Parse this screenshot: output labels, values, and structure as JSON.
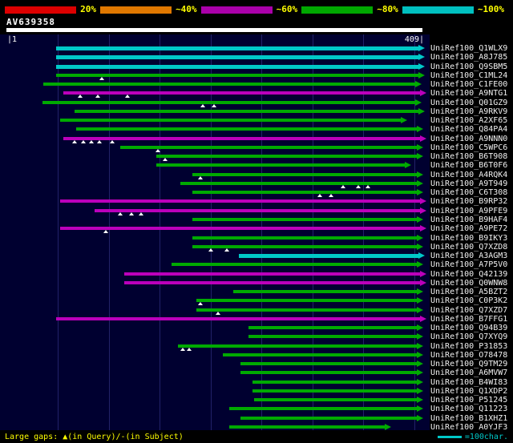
{
  "chart_data": {
    "type": "bar",
    "orientation": "horizontal",
    "description": "Sequence similarity search graphical overview of hits against query",
    "query": {
      "name": "AV639358",
      "length": 409,
      "start_label": "|1",
      "end_label": "409|"
    },
    "axis": {
      "min": 1,
      "max": 409,
      "grid_interval": 50,
      "grid_on": true
    },
    "color_scale": [
      {
        "label": "20%",
        "color": "#dd0000"
      },
      {
        "label": "~40%",
        "color": "#e07800"
      },
      {
        "label": "~60%",
        "color": "#aa00aa"
      },
      {
        "label": "~80%",
        "color": "#00a800"
      },
      {
        "label": "~100%",
        "color": "#00c0c0"
      }
    ],
    "bar_colors": {
      "cyan": "#00c8c8",
      "green": "#00aa00",
      "magenta": "#bb00bb"
    },
    "gap_legend": "Large gaps: ▲(in Query)/-(in Subject)",
    "scale_legend": "=100char.",
    "scale_legend_color": "#00c8c8",
    "hits": [
      {
        "label": "UniRef100_Q1WLX9",
        "color": "cyan",
        "start": 48,
        "end": 404,
        "gaps": []
      },
      {
        "label": "UniRef100_A8J785",
        "color": "cyan",
        "start": 48,
        "end": 404,
        "gaps": []
      },
      {
        "label": "UniRef100_Q9SBM5",
        "color": "cyan",
        "start": 48,
        "end": 404,
        "gaps": []
      },
      {
        "label": "UniRef100_C1ML24",
        "color": "green",
        "start": 48,
        "end": 404,
        "gaps": [
          93
        ]
      },
      {
        "label": "UniRef100_C1FE00",
        "color": "green",
        "start": 36,
        "end": 401,
        "gaps": []
      },
      {
        "label": "UniRef100_A9NTG1",
        "color": "magenta",
        "start": 55,
        "end": 406,
        "gaps": [
          72,
          89,
          118
        ]
      },
      {
        "label": "UniRef100_Q01GZ9",
        "color": "green",
        "start": 35,
        "end": 401,
        "gaps": [
          192,
          203
        ]
      },
      {
        "label": "UniRef100_A9RKV9",
        "color": "green",
        "start": 66,
        "end": 404,
        "gaps": []
      },
      {
        "label": "UniRef100_A2XF65",
        "color": "green",
        "start": 52,
        "end": 387,
        "gaps": []
      },
      {
        "label": "UniRef100_Q84PA4",
        "color": "green",
        "start": 68,
        "end": 403,
        "gaps": []
      },
      {
        "label": "UniRef100_A9NNN0",
        "color": "magenta",
        "start": 55,
        "end": 406,
        "gaps": [
          66,
          75,
          83,
          91,
          103
        ]
      },
      {
        "label": "UniRef100_C5WPC6",
        "color": "green",
        "start": 111,
        "end": 403,
        "gaps": [
          148
        ]
      },
      {
        "label": "UniRef100_B6T908",
        "color": "green",
        "start": 147,
        "end": 403,
        "gaps": [
          155
        ]
      },
      {
        "label": "UniRef100_B6T0F6",
        "color": "green",
        "start": 147,
        "end": 391,
        "gaps": []
      },
      {
        "label": "UniRef100_A4RQK4",
        "color": "green",
        "start": 182,
        "end": 403,
        "gaps": [
          190
        ]
      },
      {
        "label": "UniRef100_A9T949",
        "color": "green",
        "start": 170,
        "end": 403,
        "gaps": [
          330,
          345,
          355
        ]
      },
      {
        "label": "UniRef100_C6T308",
        "color": "green",
        "start": 182,
        "end": 403,
        "gaps": [
          307,
          318
        ]
      },
      {
        "label": "UniRef100_B9RP32",
        "color": "magenta",
        "start": 52,
        "end": 406,
        "gaps": []
      },
      {
        "label": "UniRef100_A9PFE9",
        "color": "magenta",
        "start": 86,
        "end": 406,
        "gaps": [
          111,
          122,
          132
        ]
      },
      {
        "label": "UniRef100_B9HAF4",
        "color": "green",
        "start": 182,
        "end": 403,
        "gaps": []
      },
      {
        "label": "UniRef100_A9PE72",
        "color": "magenta",
        "start": 52,
        "end": 406,
        "gaps": [
          97
        ]
      },
      {
        "label": "UniRef100_B9IKY3",
        "color": "green",
        "start": 182,
        "end": 403,
        "gaps": []
      },
      {
        "label": "UniRef100_Q7XZD8",
        "color": "green",
        "start": 182,
        "end": 403,
        "gaps": [
          200,
          216
        ]
      },
      {
        "label": "UniRef100_A3AGM3",
        "color": "cyan",
        "start": 228,
        "end": 404,
        "gaps": []
      },
      {
        "label": "UniRef100_A7P5V0",
        "color": "green",
        "start": 162,
        "end": 403,
        "gaps": []
      },
      {
        "label": "UniRef100_Q42139",
        "color": "magenta",
        "start": 115,
        "end": 406,
        "gaps": []
      },
      {
        "label": "UniRef100_Q0WNW8",
        "color": "magenta",
        "start": 115,
        "end": 406,
        "gaps": []
      },
      {
        "label": "UniRef100_A5BZT2",
        "color": "green",
        "start": 222,
        "end": 403,
        "gaps": []
      },
      {
        "label": "UniRef100_C0P3K2",
        "color": "green",
        "start": 186,
        "end": 403,
        "gaps": [
          190
        ]
      },
      {
        "label": "UniRef100_Q7XZD7",
        "color": "green",
        "start": 186,
        "end": 403,
        "gaps": [
          207
        ]
      },
      {
        "label": "UniRef100_B7FFG1",
        "color": "magenta",
        "start": 48,
        "end": 406,
        "gaps": []
      },
      {
        "label": "UniRef100_Q94B39",
        "color": "green",
        "start": 237,
        "end": 403,
        "gaps": []
      },
      {
        "label": "UniRef100_Q7XYQ9",
        "color": "green",
        "start": 237,
        "end": 403,
        "gaps": []
      },
      {
        "label": "UniRef100_P31853",
        "color": "green",
        "start": 168,
        "end": 403,
        "gaps": [
          173,
          179
        ]
      },
      {
        "label": "UniRef100_O78478",
        "color": "green",
        "start": 212,
        "end": 403,
        "gaps": []
      },
      {
        "label": "UniRef100_Q9TM29",
        "color": "green",
        "start": 229,
        "end": 403,
        "gaps": []
      },
      {
        "label": "UniRef100_A6MVW7",
        "color": "green",
        "start": 229,
        "end": 403,
        "gaps": []
      },
      {
        "label": "UniRef100_B4WI83",
        "color": "green",
        "start": 241,
        "end": 403,
        "gaps": []
      },
      {
        "label": "UniRef100_Q1XDP2",
        "color": "green",
        "start": 241,
        "end": 403,
        "gaps": []
      },
      {
        "label": "UniRef100_P51245",
        "color": "green",
        "start": 243,
        "end": 403,
        "gaps": []
      },
      {
        "label": "UniRef100_Q11223",
        "color": "green",
        "start": 218,
        "end": 403,
        "gaps": []
      },
      {
        "label": "UniRef100_B1XHZ1",
        "color": "green",
        "start": 229,
        "end": 403,
        "gaps": []
      },
      {
        "label": "UniRef100_A0YJF3",
        "color": "green",
        "start": 218,
        "end": 371,
        "gaps": []
      }
    ]
  }
}
